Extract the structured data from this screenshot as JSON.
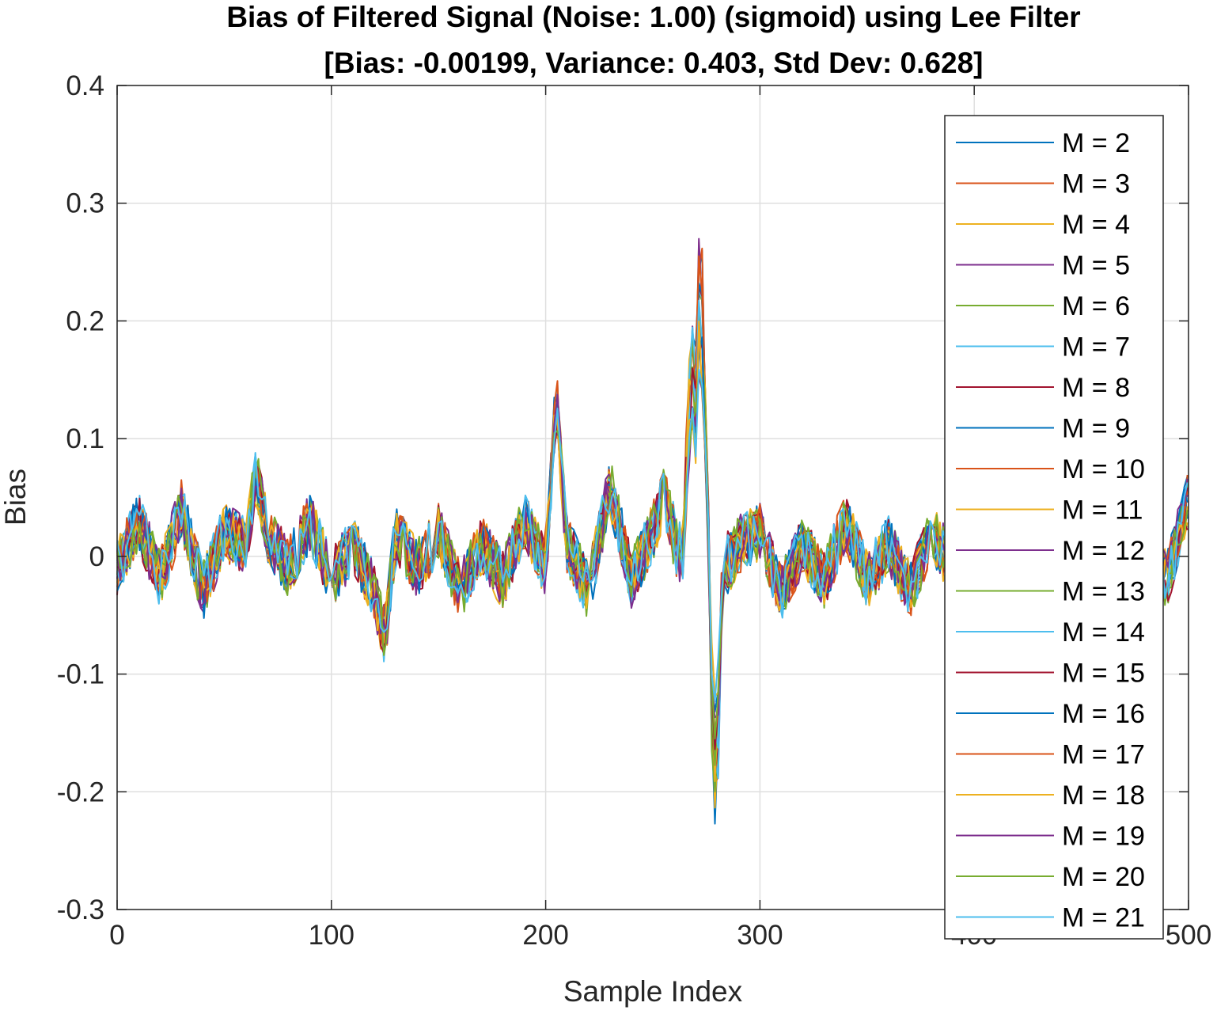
{
  "chart_data": {
    "type": "line",
    "title": "Bias of Filtered Signal (Noise: 1.00) (sigmoid) using Lee Filter",
    "subtitle": "[Bias: -0.00199, Variance: 0.403, Std Dev: 0.628]",
    "xlabel": "Sample Index",
    "ylabel": "Bias",
    "xlim": [
      0,
      500
    ],
    "ylim": [
      -0.3,
      0.4
    ],
    "xticks": [
      0,
      100,
      200,
      300,
      400,
      500
    ],
    "xtick_labels": [
      "0",
      "100",
      "200",
      "300",
      "400",
      "500"
    ],
    "yticks": [
      -0.3,
      -0.2,
      -0.1,
      0,
      0.1,
      0.2,
      0.3,
      0.4
    ],
    "ytick_labels": [
      "-0.3",
      "-0.2",
      "-0.1",
      "0",
      "0.1",
      "0.2",
      "0.3",
      "0.4"
    ],
    "grid": true,
    "legend_position": "top-right",
    "x": [
      0,
      10,
      20,
      30,
      40,
      50,
      60,
      65,
      70,
      80,
      90,
      100,
      110,
      120,
      125,
      130,
      140,
      150,
      160,
      170,
      180,
      190,
      200,
      205,
      207,
      210,
      220,
      230,
      240,
      250,
      255,
      260,
      264,
      266,
      268,
      270,
      272,
      274,
      276,
      278,
      280,
      282,
      285,
      290,
      300,
      310,
      320,
      330,
      340,
      350,
      360,
      370,
      380,
      390,
      400,
      410,
      420,
      430,
      440,
      450,
      460,
      470,
      480,
      490,
      500
    ],
    "base_values": [
      -0.01,
      0.03,
      -0.02,
      0.04,
      -0.03,
      0.02,
      0.01,
      0.07,
      0.02,
      -0.01,
      0.03,
      -0.02,
      0.01,
      -0.03,
      -0.07,
      0.02,
      -0.01,
      0.02,
      -0.03,
      0.01,
      -0.02,
      0.03,
      -0.01,
      0.14,
      0.08,
      0.01,
      -0.03,
      0.06,
      -0.02,
      0.02,
      0.05,
      0.02,
      0.0,
      0.1,
      0.2,
      0.16,
      0.3,
      0.18,
      0.02,
      -0.2,
      -0.22,
      -0.05,
      -0.01,
      0.01,
      0.02,
      -0.03,
      0.01,
      -0.02,
      0.03,
      -0.02,
      0.01,
      -0.03,
      0.02,
      -0.01,
      0.03,
      -0.02,
      0.01,
      -0.03,
      0.02,
      -0.01,
      0.03,
      -0.02,
      0.01,
      -0.02,
      0.05
    ],
    "series": [
      {
        "name": "M = 2",
        "color": "#0072BD"
      },
      {
        "name": "M = 3",
        "color": "#D95319"
      },
      {
        "name": "M = 4",
        "color": "#EDB120"
      },
      {
        "name": "M = 5",
        "color": "#7E2F8E"
      },
      {
        "name": "M = 6",
        "color": "#77AC30"
      },
      {
        "name": "M = 7",
        "color": "#4DBEEE"
      },
      {
        "name": "M = 8",
        "color": "#A2142F"
      },
      {
        "name": "M = 9",
        "color": "#0072BD"
      },
      {
        "name": "M = 10",
        "color": "#D95319"
      },
      {
        "name": "M = 11",
        "color": "#EDB120"
      },
      {
        "name": "M = 12",
        "color": "#7E2F8E"
      },
      {
        "name": "M = 13",
        "color": "#77AC30"
      },
      {
        "name": "M = 14",
        "color": "#4DBEEE"
      },
      {
        "name": "M = 15",
        "color": "#A2142F"
      },
      {
        "name": "M = 16",
        "color": "#0072BD"
      },
      {
        "name": "M = 17",
        "color": "#D95319"
      },
      {
        "name": "M = 18",
        "color": "#EDB120"
      },
      {
        "name": "M = 19",
        "color": "#7E2F8E"
      },
      {
        "name": "M = 20",
        "color": "#77AC30"
      },
      {
        "name": "M = 21",
        "color": "#4DBEEE"
      }
    ]
  }
}
